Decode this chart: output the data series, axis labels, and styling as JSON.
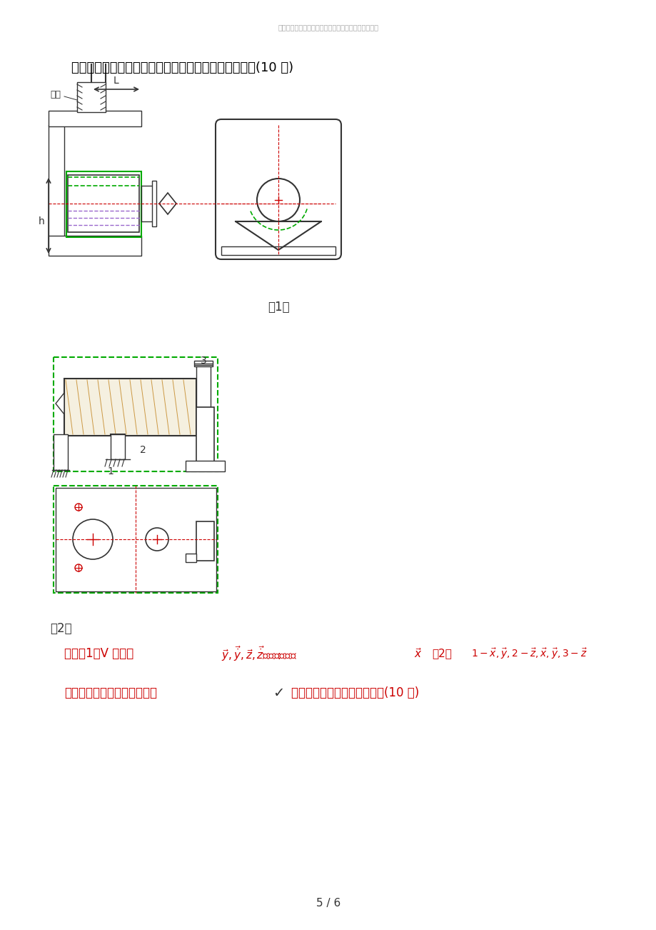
{
  "page_width": 9.2,
  "page_height": 13.02,
  "bg_color": "#ffffff",
  "header_text": "真诚为您提供优质参考资料，若有不当之处，请指正。",
  "header_color": "#aaaaaa",
  "header_fontsize": 7,
  "title_text": "七、分别指出下列图中各定位元件限制的工件自由度。(10 分)",
  "title_fontsize": 13,
  "title_color": "#000000",
  "label1_text": "（1）",
  "label2_text": "（2）",
  "answer_line1": "解：（1）V 型铁：",
  "answer_color": "#cc0000",
  "question8_text": "八、加工如图所示零件上注有    的表面时应限制哪些自由度？(10 分)",
  "footer_text": "5 / 6",
  "green_color": "#00aa00",
  "red_color": "#cc0000",
  "purple_color": "#9966cc",
  "draw_color": "#333333",
  "blue_color": "#0000cc"
}
